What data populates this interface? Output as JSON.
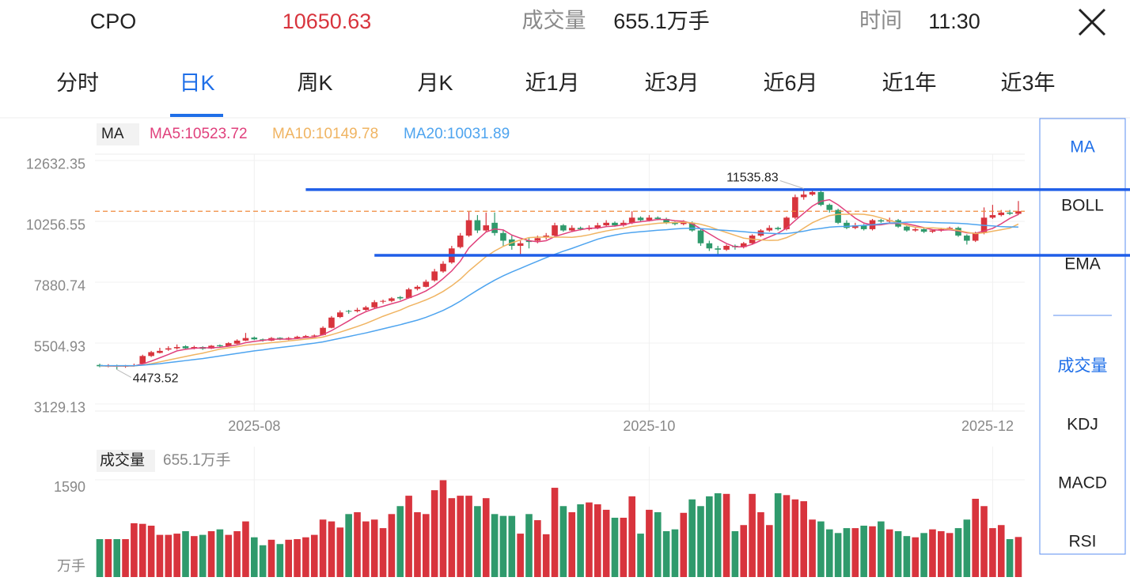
{
  "header": {
    "symbol": "CPO",
    "price": 10650.63,
    "volume_label": "成交量",
    "volume": "655.1万手",
    "time_label": "时间",
    "time": "11:30"
  },
  "tabs": [
    "分时",
    "日K",
    "周K",
    "月K",
    "近1月",
    "近3月",
    "近6月",
    "近1年",
    "近3年"
  ],
  "indicators": [
    "MA",
    "BOLL",
    "EMA"
  ],
  "sub_indicators": [
    "成交量",
    "KDJ",
    "MACD",
    "RSI"
  ],
  "chart_data": {
    "type": "candlestick",
    "legend_title": "MA",
    "up_color": "#d8343d",
    "down_color": "#2f9a6c",
    "ylim": [
      2851,
      12879
    ],
    "yticks": [
      12632.35,
      10256.55,
      7880.74,
      5504.93,
      3129.13
    ],
    "xticks": [
      {
        "value": 18,
        "label": "2025-08"
      },
      {
        "value": 64,
        "label": "2025-10"
      },
      {
        "value": 104,
        "label": "2025-12"
      }
    ],
    "ohlc": [
      [
        4650,
        4700,
        4560,
        4600
      ],
      [
        4600,
        4680,
        4560,
        4620
      ],
      [
        4630,
        4660,
        4473.52,
        4580
      ],
      [
        4580,
        4650,
        4540,
        4610
      ],
      [
        4620,
        4700,
        4590,
        4640
      ],
      [
        4700,
        5050,
        4680,
        5000
      ],
      [
        5000,
        5200,
        4960,
        5150
      ],
      [
        5120,
        5320,
        5100,
        5200
      ],
      [
        5250,
        5380,
        5200,
        5300
      ],
      [
        5300,
        5450,
        5250,
        5350
      ],
      [
        5380,
        5420,
        5260,
        5300
      ],
      [
        5300,
        5400,
        5260,
        5350
      ],
      [
        5350,
        5380,
        5240,
        5280
      ],
      [
        5290,
        5430,
        5270,
        5400
      ],
      [
        5420,
        5450,
        5340,
        5380
      ],
      [
        5390,
        5540,
        5370,
        5500
      ],
      [
        5480,
        5650,
        5460,
        5600
      ],
      [
        5600,
        5900,
        5580,
        5700
      ],
      [
        5720,
        5760,
        5620,
        5650
      ],
      [
        5650,
        5680,
        5560,
        5600
      ],
      [
        5600,
        5740,
        5580,
        5700
      ],
      [
        5710,
        5730,
        5620,
        5650
      ],
      [
        5640,
        5740,
        5620,
        5700
      ],
      [
        5700,
        5790,
        5680,
        5750
      ],
      [
        5740,
        5820,
        5720,
        5780
      ],
      [
        5790,
        5840,
        5740,
        5800
      ],
      [
        5820,
        6160,
        5800,
        6100
      ],
      [
        6100,
        6560,
        6080,
        6500
      ],
      [
        6520,
        6780,
        6480,
        6700
      ],
      [
        6760,
        6800,
        6650,
        6750
      ],
      [
        6750,
        6880,
        6700,
        6800
      ],
      [
        6800,
        6960,
        6760,
        6900
      ],
      [
        6900,
        7180,
        6860,
        7100
      ],
      [
        7120,
        7200,
        7050,
        7150
      ],
      [
        7150,
        7300,
        7100,
        7250
      ],
      [
        7300,
        7340,
        7180,
        7250
      ],
      [
        7260,
        7660,
        7240,
        7600
      ],
      [
        7620,
        7760,
        7560,
        7700
      ],
      [
        7700,
        7980,
        7680,
        7900
      ],
      [
        7950,
        8400,
        7900,
        8300
      ],
      [
        8300,
        8700,
        8250,
        8600
      ],
      [
        8650,
        9300,
        8600,
        9200
      ],
      [
        9250,
        9800,
        9200,
        9700
      ],
      [
        9700,
        10650,
        9650,
        10300
      ],
      [
        10300,
        10500,
        9800,
        9900
      ],
      [
        9900,
        10600,
        9850,
        10100
      ],
      [
        10200,
        10600,
        9700,
        9800
      ],
      [
        9800,
        9900,
        9300,
        9500
      ],
      [
        9550,
        9700,
        9150,
        9300
      ],
      [
        9300,
        9500,
        8900,
        9400
      ],
      [
        9500,
        9600,
        9200,
        9450
      ],
      [
        9500,
        9700,
        9400,
        9600
      ],
      [
        9650,
        9800,
        9550,
        9700
      ],
      [
        9700,
        10200,
        9650,
        10100
      ],
      [
        10100,
        10150,
        9850,
        9900
      ],
      [
        9900,
        10100,
        9850,
        10000
      ],
      [
        10000,
        10050,
        9900,
        9950
      ],
      [
        9950,
        10100,
        9900,
        10000
      ],
      [
        10000,
        10200,
        9950,
        10100
      ],
      [
        10100,
        10300,
        10050,
        10200
      ],
      [
        10200,
        10250,
        10050,
        10100
      ],
      [
        10100,
        10300,
        10050,
        10200
      ],
      [
        10200,
        10650,
        10150,
        10400
      ],
      [
        10400,
        10450,
        10250,
        10300
      ],
      [
        10300,
        10500,
        10250,
        10400
      ],
      [
        10400,
        10450,
        10300,
        10350
      ],
      [
        10350,
        10400,
        10150,
        10200
      ],
      [
        10200,
        10250,
        10100,
        10150
      ],
      [
        10150,
        10300,
        10100,
        10200
      ],
      [
        10200,
        10250,
        9850,
        9900
      ],
      [
        9900,
        9950,
        9300,
        9400
      ],
      [
        9400,
        9500,
        9100,
        9200
      ],
      [
        9200,
        9300,
        8950,
        9150
      ],
      [
        9150,
        9350,
        9100,
        9300
      ],
      [
        9300,
        9350,
        9150,
        9250
      ],
      [
        9250,
        9450,
        9200,
        9400
      ],
      [
        9400,
        9750,
        9350,
        9700
      ],
      [
        9700,
        9950,
        9650,
        9900
      ],
      [
        9900,
        10100,
        9850,
        10000
      ],
      [
        10000,
        10050,
        9900,
        9950
      ],
      [
        9950,
        10450,
        9900,
        10400
      ],
      [
        10400,
        11300,
        10350,
        11200
      ],
      [
        11200,
        11535.83,
        11100,
        11300
      ],
      [
        11300,
        11480,
        11250,
        11400
      ],
      [
        11400,
        11450,
        10850,
        10900
      ],
      [
        10900,
        10950,
        10600,
        10700
      ],
      [
        10700,
        10750,
        10150,
        10200
      ],
      [
        10200,
        10300,
        9950,
        10000
      ],
      [
        10000,
        10200,
        9950,
        10100
      ],
      [
        10100,
        10150,
        9900,
        9950
      ],
      [
        9950,
        10350,
        9900,
        10300
      ],
      [
        10300,
        10350,
        10200,
        10250
      ],
      [
        10250,
        10400,
        10200,
        10300
      ],
      [
        10300,
        10350,
        10000,
        10050
      ],
      [
        10050,
        10100,
        9850,
        9900
      ],
      [
        9900,
        10000,
        9850,
        9950
      ],
      [
        9950,
        10000,
        9800,
        9850
      ],
      [
        9850,
        9950,
        9800,
        9900
      ],
      [
        9900,
        10000,
        9850,
        9950
      ],
      [
        9950,
        10050,
        9900,
        10000
      ],
      [
        10000,
        10050,
        9650,
        9700
      ],
      [
        9700,
        9750,
        9350,
        9500
      ],
      [
        9500,
        9850,
        9450,
        9800
      ],
      [
        9800,
        10800,
        9750,
        10400
      ],
      [
        10400,
        10900,
        10350,
        10500
      ],
      [
        10500,
        10700,
        10450,
        10600
      ],
      [
        10600,
        10700,
        10500,
        10550
      ],
      [
        10550,
        11050,
        10500,
        10650.63
      ]
    ],
    "series": [
      {
        "name": "MA5:10523.72",
        "color": "#e0407c",
        "values": [
          4620,
          4610,
          4600,
          4610,
          4610,
          4690,
          4800,
          4930,
          5060,
          5200,
          5260,
          5300,
          5320,
          5320,
          5340,
          5380,
          5430,
          5520,
          5570,
          5610,
          5650,
          5660,
          5660,
          5680,
          5720,
          5740,
          5830,
          5990,
          6180,
          6370,
          6570,
          6730,
          6850,
          6940,
          7040,
          7130,
          7270,
          7390,
          7540,
          7750,
          8020,
          8320,
          8700,
          9220,
          9540,
          9840,
          9960,
          9920,
          9720,
          9600,
          9500,
          9460,
          9500,
          9660,
          9760,
          9860,
          9930,
          9990,
          9990,
          10050,
          10070,
          10120,
          10200,
          10240,
          10280,
          10330,
          10330,
          10280,
          10260,
          10160,
          9970,
          9770,
          9570,
          9390,
          9260,
          9260,
          9360,
          9510,
          9650,
          9790,
          9990,
          10290,
          10570,
          10850,
          11040,
          11100,
          10900,
          10640,
          10380,
          10190,
          10110,
          10120,
          10180,
          10170,
          10160,
          10090,
          10010,
          9930,
          9910,
          9930,
          9880,
          9810,
          9790,
          9880,
          9980,
          10160,
          10370,
          10523.72
        ]
      },
      {
        "name": "MA10:10149.78",
        "color": "#f0b462",
        "values": [
          4610,
          4610,
          4610,
          4610,
          4615,
          4650,
          4700,
          4770,
          4840,
          4910,
          4980,
          5050,
          5110,
          5190,
          5270,
          5320,
          5360,
          5420,
          5450,
          5480,
          5520,
          5550,
          5590,
          5620,
          5660,
          5690,
          5740,
          5830,
          5930,
          6040,
          6150,
          6270,
          6410,
          6550,
          6670,
          6790,
          6940,
          7060,
          7190,
          7340,
          7520,
          7740,
          8000,
          8320,
          8600,
          8880,
          9100,
          9280,
          9420,
          9530,
          9620,
          9640,
          9640,
          9640,
          9640,
          9630,
          9670,
          9730,
          9810,
          9880,
          9940,
          9990,
          10060,
          10100,
          10140,
          10180,
          10200,
          10210,
          10220,
          10200,
          10140,
          10050,
          9930,
          9820,
          9710,
          9600,
          9560,
          9530,
          9510,
          9520,
          9620,
          9770,
          9990,
          10200,
          10350,
          10480,
          10530,
          10530,
          10540,
          10530,
          10480,
          10390,
          10290,
          10200,
          10100,
          10030,
          10000,
          10000,
          9980,
          9950,
          9900,
          9830,
          9780,
          9810,
          9870,
          9930,
          9990,
          10149.78
        ]
      },
      {
        "name": "MA20:10031.89",
        "color": "#4ea4ef",
        "values": [
          4620,
          4620,
          4620,
          4620,
          4620,
          4640,
          4670,
          4700,
          4740,
          4780,
          4820,
          4860,
          4900,
          4950,
          5000,
          5050,
          5100,
          5150,
          5200,
          5240,
          5290,
          5330,
          5370,
          5410,
          5460,
          5500,
          5550,
          5620,
          5690,
          5760,
          5830,
          5900,
          5980,
          6060,
          6140,
          6220,
          6310,
          6400,
          6510,
          6640,
          6780,
          6950,
          7140,
          7360,
          7570,
          7770,
          7960,
          8130,
          8280,
          8420,
          8560,
          8700,
          8840,
          8970,
          9090,
          9200,
          9320,
          9440,
          9560,
          9650,
          9720,
          9780,
          9820,
          9850,
          9880,
          9910,
          9930,
          9960,
          9980,
          9990,
          9970,
          9950,
          9920,
          9900,
          9880,
          9850,
          9820,
          9800,
          9790,
          9770,
          9780,
          9820,
          9870,
          9940,
          9980,
          10030,
          10050,
          10060,
          10080,
          10100,
          10120,
          10160,
          10190,
          10200,
          10220,
          10230,
          10230,
          10210,
          10200,
          10190,
          10180,
          10160,
          10130,
          10100,
          10080,
          10050,
          10040,
          10031.89
        ]
      }
    ],
    "hlines": [
      {
        "value": 11493,
        "from": 24,
        "color": "#1f5ee8"
      },
      {
        "value": 8931,
        "from": 32,
        "color": "#1f5ee8"
      }
    ],
    "last_line_color": "#f08a3c",
    "volume_title": "成交量",
    "volume_legend": "655.1万手",
    "volume_unit": "万手",
    "volume_ylim": [
      0,
      1590
    ],
    "volume_yticks": [
      1590
    ],
    "volume": [
      620,
      620,
      620,
      620,
      880,
      870,
      840,
      690,
      690,
      710,
      750,
      670,
      690,
      750,
      780,
      690,
      750,
      910,
      650,
      520,
      610,
      540,
      610,
      620,
      650,
      690,
      940,
      910,
      810,
      1030,
      1060,
      910,
      940,
      800,
      1030,
      1160,
      1330,
      1060,
      1030,
      1420,
      1590,
      1290,
      1330,
      1330,
      1160,
      1290,
      1030,
      1000,
      1000,
      710,
      1030,
      930,
      700,
      1460,
      1160,
      1060,
      1190,
      1220,
      1190,
      1100,
      970,
      970,
      1320,
      710,
      1100,
      1060,
      750,
      780,
      1050,
      1270,
      1160,
      1320,
      1370,
      1360,
      750,
      850,
      1360,
      1060,
      850,
      1370,
      1340,
      1270,
      1240,
      940,
      910,
      780,
      720,
      800,
      800,
      840,
      830,
      910,
      780,
      750,
      670,
      650,
      720,
      780,
      750,
      720,
      800,
      940,
      1280,
      1160,
      800,
      850,
      620,
      655.1
    ]
  }
}
